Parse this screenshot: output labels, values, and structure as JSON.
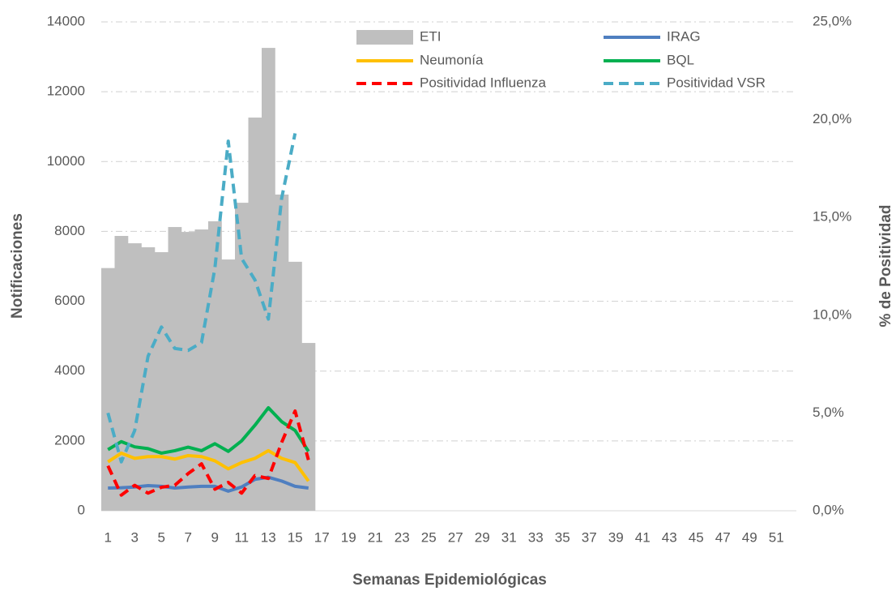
{
  "chart_data": {
    "type": "combo",
    "x_label": "Semanas Epidemiológicas",
    "y_label": "Notificaciones",
    "y2_label": "% de Positividad",
    "categories": [
      1,
      null,
      3,
      null,
      5,
      null,
      7,
      null,
      9,
      null,
      11,
      null,
      13,
      null,
      15,
      null,
      17,
      null,
      19,
      null,
      21,
      null,
      23,
      null,
      25,
      null,
      27,
      null,
      29,
      null,
      31,
      null,
      33,
      null,
      35,
      null,
      37,
      null,
      39,
      null,
      41,
      null,
      43,
      null,
      45,
      null,
      47,
      null,
      49,
      null,
      51,
      null
    ],
    "ylim": [
      0,
      14000
    ],
    "yticks": [
      0,
      2000,
      4000,
      6000,
      8000,
      10000,
      12000,
      14000
    ],
    "y2lim": [
      0,
      25
    ],
    "y2ticks": [
      {
        "value": 0,
        "label": "0,0%"
      },
      {
        "value": 5,
        "label": "5,0%"
      },
      {
        "value": 10,
        "label": "10,0%"
      },
      {
        "value": 15,
        "label": "15,0%"
      },
      {
        "value": 20,
        "label": "20,0%"
      },
      {
        "value": 25,
        "label": "25,0%"
      }
    ],
    "grid": true,
    "legend": "top",
    "series": [
      {
        "name": "ETI",
        "type": "bar",
        "color": "#bfbfbf",
        "values": [
          6950,
          7870,
          7660,
          7545,
          7405,
          8125,
          7985,
          8055,
          8290,
          7195,
          8820,
          11260,
          13255,
          9055,
          7130,
          4805,
          null,
          null,
          null,
          null,
          null,
          null,
          null,
          null,
          null,
          null,
          null,
          null,
          null,
          null,
          null,
          null,
          null,
          null,
          null,
          null,
          null,
          null,
          null,
          null,
          null,
          null,
          null,
          null,
          null,
          null,
          null,
          null,
          null,
          null,
          null,
          null
        ]
      },
      {
        "name": "IRAG",
        "type": "line",
        "color": "#4f7fc0",
        "values": [
          650,
          660,
          680,
          720,
          700,
          650,
          680,
          700,
          700,
          560,
          680,
          900,
          960,
          850,
          700,
          650,
          null,
          null,
          null,
          null,
          null,
          null,
          null,
          null,
          null,
          null,
          null,
          null,
          null,
          null,
          null,
          null,
          null,
          null,
          null,
          null,
          null,
          null,
          null,
          null,
          null,
          null,
          null,
          null,
          null,
          null,
          null,
          null,
          null,
          null,
          null,
          null
        ]
      },
      {
        "name": "Neumonía",
        "type": "line",
        "color": "#ffc000",
        "values": [
          1400,
          1650,
          1500,
          1550,
          1550,
          1480,
          1580,
          1550,
          1430,
          1200,
          1380,
          1500,
          1720,
          1500,
          1380,
          850,
          null,
          null,
          null,
          null,
          null,
          null,
          null,
          null,
          null,
          null,
          null,
          null,
          null,
          null,
          null,
          null,
          null,
          null,
          null,
          null,
          null,
          null,
          null,
          null,
          null,
          null,
          null,
          null,
          null,
          null,
          null,
          null,
          null,
          null,
          null,
          null
        ]
      },
      {
        "name": "BQL",
        "type": "line",
        "color": "#00b050",
        "values": [
          1750,
          1980,
          1830,
          1780,
          1650,
          1720,
          1820,
          1720,
          1920,
          1700,
          2000,
          2450,
          2950,
          2550,
          2300,
          1700,
          null,
          null,
          null,
          null,
          null,
          null,
          null,
          null,
          null,
          null,
          null,
          null,
          null,
          null,
          null,
          null,
          null,
          null,
          null,
          null,
          null,
          null,
          null,
          null,
          null,
          null,
          null,
          null,
          null,
          null,
          null,
          null,
          null,
          null,
          null,
          null
        ]
      },
      {
        "name": "Positividad Influenza",
        "type": "line",
        "style": "dashed",
        "axis": "y2",
        "color": "#ff0000",
        "values": [
          2.3,
          0.8,
          1.3,
          0.9,
          1.2,
          1.3,
          1.9,
          2.4,
          1.1,
          1.45,
          0.9,
          1.8,
          1.65,
          3.5,
          5.1,
          2.6,
          null,
          null,
          null,
          null,
          null,
          null,
          null,
          null,
          null,
          null,
          null,
          null,
          null,
          null,
          null,
          null,
          null,
          null,
          null,
          null,
          null,
          null,
          null,
          null,
          null,
          null,
          null,
          null,
          null,
          null,
          null,
          null,
          null,
          null,
          null,
          null
        ]
      },
      {
        "name": "Positividad VSR",
        "type": "line",
        "style": "dashed",
        "axis": "y2",
        "color": "#4bacc6",
        "values": [
          5.0,
          2.5,
          4.1,
          7.9,
          9.4,
          8.3,
          8.2,
          8.6,
          12.4,
          18.9,
          12.9,
          11.8,
          9.8,
          16.0,
          19.3,
          null,
          null,
          null,
          null,
          null,
          null,
          null,
          null,
          null,
          null,
          null,
          null,
          null,
          null,
          null,
          null,
          null,
          null,
          null,
          null,
          null,
          null,
          null,
          null,
          null,
          null,
          null,
          null,
          null,
          null,
          null,
          null,
          null,
          null,
          null,
          null,
          null
        ]
      }
    ]
  }
}
